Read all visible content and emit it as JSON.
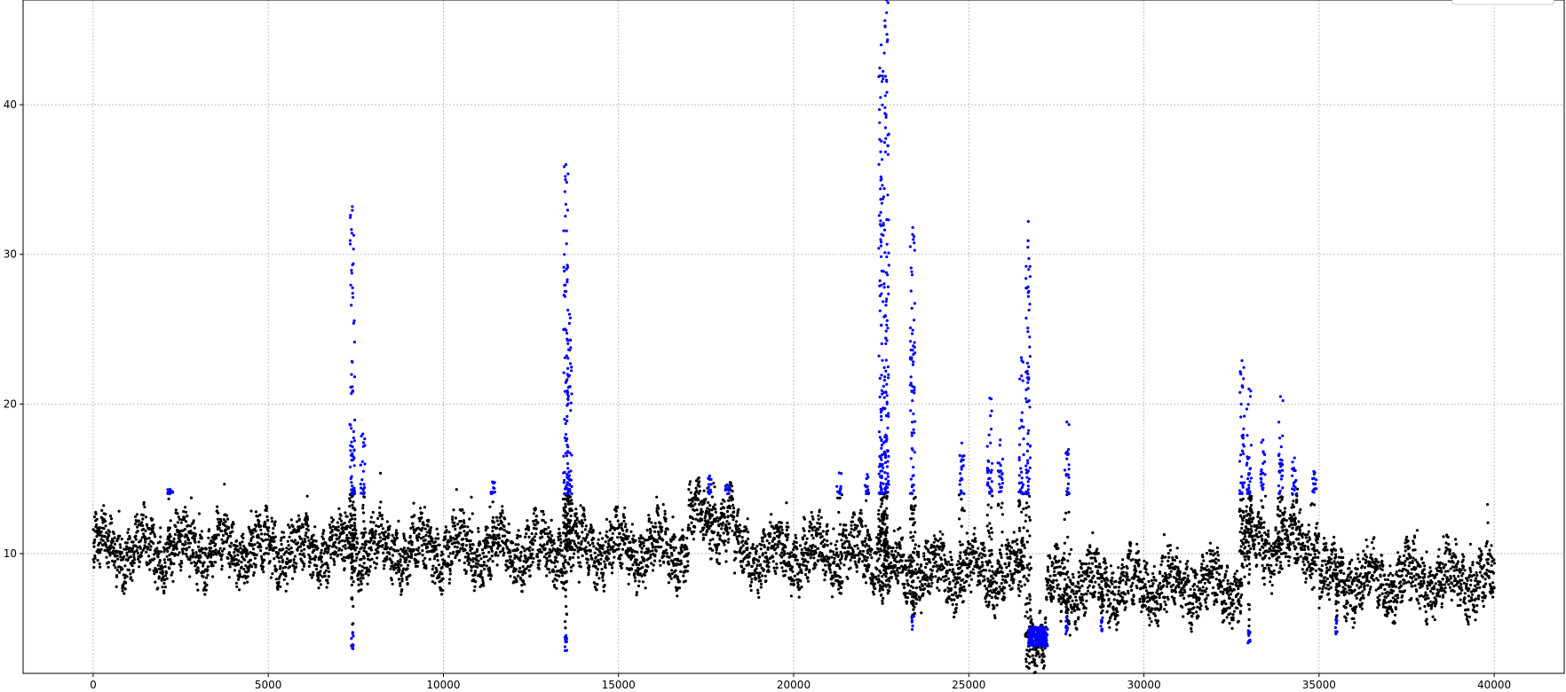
{
  "chart_data": {
    "type": "scatter",
    "title": "",
    "xlabel": "",
    "ylabel": "",
    "xlim": [
      -2000,
      42000
    ],
    "ylim": [
      2.0,
      47.0
    ],
    "xticks": [
      0,
      5000,
      10000,
      15000,
      20000,
      25000,
      30000,
      35000,
      40000
    ],
    "yticks": [
      10,
      20,
      30,
      40
    ],
    "xtick_labels": [
      "0",
      "5000",
      "10000",
      "15000",
      "20000",
      "25000",
      "30000",
      "35000",
      "40000"
    ],
    "ytick_labels": [
      "10",
      "20",
      "30",
      "40"
    ],
    "grid": true,
    "legend_position": "top-right",
    "n_points": 40000,
    "series": [
      {
        "role": "regular readings",
        "color": "#000000",
        "baseline_segments": [
          {
            "x": [
              0,
              17000
            ],
            "level": 10.3
          },
          {
            "x": [
              17000,
              18300
            ],
            "level": 12.2
          },
          {
            "x": [
              18300,
              22500
            ],
            "level": 10.0
          },
          {
            "x": [
              22500,
              26600
            ],
            "level": 8.8
          },
          {
            "x": [
              26600,
              27200
            ],
            "level": 4.5
          },
          {
            "x": [
              27200,
              32800
            ],
            "level": 7.8
          },
          {
            "x": [
              32800,
              35000
            ],
            "level": 10.5
          },
          {
            "x": [
              35000,
              40000
            ],
            "level": 8.2
          }
        ]
      },
      {
        "role": "highlighted readings",
        "color": "#0000ff",
        "spikes": [
          {
            "x": 7400,
            "y_max": 33.2,
            "y_min": 3.6
          },
          {
            "x": 7700,
            "y_max": 18.0
          },
          {
            "x": 2200,
            "y_max": 14.3
          },
          {
            "x": 11400,
            "y_max": 14.8
          },
          {
            "x": 13500,
            "y_max": 36.0,
            "y_min": 3.4
          },
          {
            "x": 13600,
            "y_max": 26.0
          },
          {
            "x": 17600,
            "y_max": 15.2
          },
          {
            "x": 18100,
            "y_max": 14.6
          },
          {
            "x": 21300,
            "y_max": 15.4
          },
          {
            "x": 22100,
            "y_max": 15.3
          },
          {
            "x": 22500,
            "y_max": 44.0
          },
          {
            "x": 22650,
            "y_max": 47.0
          },
          {
            "x": 23400,
            "y_max": 31.8,
            "y_min": 4.7
          },
          {
            "x": 24800,
            "y_max": 17.4
          },
          {
            "x": 25600,
            "y_max": 20.4
          },
          {
            "x": 25900,
            "y_max": 17.6
          },
          {
            "x": 26500,
            "y_max": 23.1
          },
          {
            "x": 26700,
            "y_max": 32.2
          },
          {
            "x": 27800,
            "y_max": 18.8,
            "y_min": 4.6
          },
          {
            "x": 28800,
            "y_min": 4.8
          },
          {
            "x": 32800,
            "y_max": 22.9
          },
          {
            "x": 33000,
            "y_max": 21.0,
            "y_min": 4.0
          },
          {
            "x": 33400,
            "y_max": 17.6
          },
          {
            "x": 33900,
            "y_max": 20.5
          },
          {
            "x": 34300,
            "y_max": 16.4
          },
          {
            "x": 34850,
            "y_max": 15.5
          },
          {
            "x": 35500,
            "y_min": 4.5
          }
        ],
        "low_cluster": {
          "x": [
            26700,
            27250
          ],
          "y": [
            3.8,
            5.1
          ]
        }
      }
    ]
  }
}
